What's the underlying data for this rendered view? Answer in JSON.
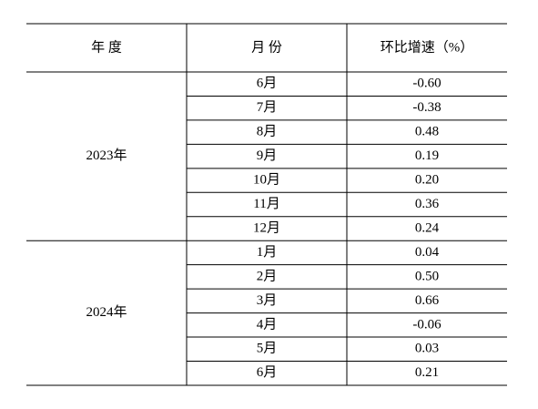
{
  "table": {
    "header": [
      "年 度",
      "月 份",
      "环比增速（%）"
    ],
    "groups": [
      {
        "year": "2023年",
        "rows": [
          [
            "6月",
            "-0.60"
          ],
          [
            "7月",
            "-0.38"
          ],
          [
            "8月",
            "0.48"
          ],
          [
            "9月",
            "0.19"
          ],
          [
            "10月",
            "0.20"
          ],
          [
            "11月",
            "0.36"
          ],
          [
            "12月",
            "0.24"
          ]
        ]
      },
      {
        "year": "2024年",
        "rows": [
          [
            "1月",
            "0.04"
          ],
          [
            "2月",
            "0.50"
          ],
          [
            "3月",
            "0.66"
          ],
          [
            "4月",
            "-0.06"
          ],
          [
            "5月",
            "0.03"
          ],
          [
            "6月",
            "0.21"
          ]
        ]
      }
    ]
  }
}
